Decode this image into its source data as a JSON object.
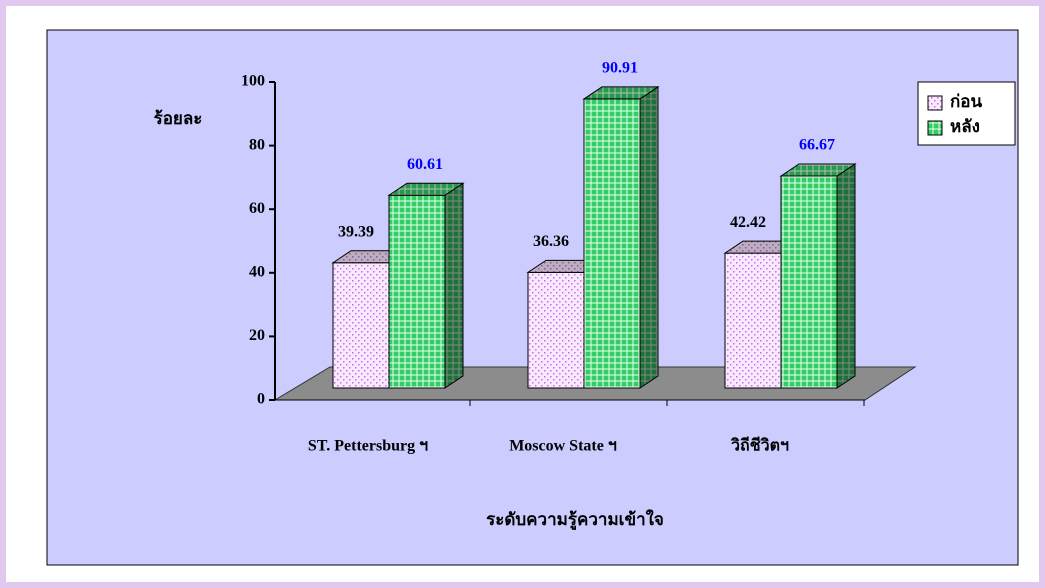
{
  "chart_data": {
    "type": "bar3d",
    "y_label": "ร้อยละ",
    "x_label": "ระดับความรู้ความเข้าใจ",
    "categories": [
      "ST. Pettersburg ฯ",
      "Moscow State ฯ",
      "วิถีชีวิตฯ"
    ],
    "series": [
      {
        "name": "ก่อน",
        "color": "#ffe6ff",
        "label_color": "#000000",
        "values": [
          39.39,
          36.36,
          42.42
        ]
      },
      {
        "name": "หลัง",
        "color": "#33cc66",
        "label_color": "#0000ff",
        "values": [
          60.61,
          90.91,
          66.67
        ]
      }
    ],
    "ylim": [
      0,
      100
    ],
    "yticks": [
      0,
      20,
      40,
      60,
      80,
      100
    ],
    "legend": "top-right"
  }
}
